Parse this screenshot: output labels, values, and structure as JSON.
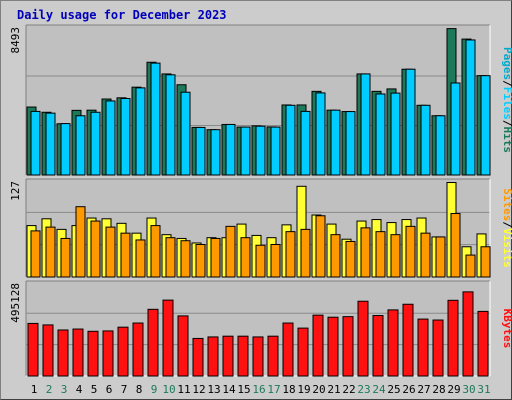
{
  "title": "Daily usage for December 2023",
  "colors": {
    "hits": "#1c7a5a",
    "files": "#00ccff",
    "pages": "#00aacc",
    "visits": "#ffff33",
    "sites": "#ff9900",
    "kbytes": "#ff1111",
    "weekday": "#000000",
    "weekend": "#1c7a5a"
  },
  "panels": {
    "top": {
      "max_label": "8493",
      "legend": [
        "Pages",
        "/",
        "Files",
        "/",
        "Hits"
      ]
    },
    "mid": {
      "max_label": "127",
      "legend": [
        "Sites",
        "/",
        "Visits"
      ]
    },
    "bot": {
      "max_label": "495128",
      "legend": [
        "KBytes"
      ]
    }
  },
  "chart_data": {
    "type": "bar",
    "title": "Daily usage for December 2023",
    "categories": [
      "1",
      "2",
      "3",
      "4",
      "5",
      "6",
      "7",
      "8",
      "9",
      "10",
      "11",
      "12",
      "13",
      "14",
      "15",
      "16",
      "17",
      "18",
      "19",
      "20",
      "21",
      "22",
      "23",
      "24",
      "25",
      "26",
      "27",
      "28",
      "29",
      "30",
      "31"
    ],
    "weekend_days": [
      "2",
      "3",
      "9",
      "10",
      "16",
      "17",
      "23",
      "24",
      "30",
      "31"
    ],
    "panels": [
      {
        "ylim": [
          0,
          8493
        ],
        "series": [
          {
            "name": "Hits",
            "values": [
              3900,
              3600,
              2940,
              3710,
              3720,
              4360,
              4430,
              5040,
              6470,
              5800,
              5180,
              2730,
              2600,
              2900,
              2750,
              2820,
              2760,
              4020,
              4020,
              4800,
              3720,
              3640,
              5800,
              4800,
              4940,
              6070,
              4000,
              3400,
              8400,
              7800,
              5700
            ]
          },
          {
            "name": "Files",
            "values": [
              3650,
              3550,
              2950,
              3400,
              3600,
              4250,
              4390,
              5000,
              6420,
              5750,
              4750,
              2730,
              2600,
              2900,
              2750,
              2800,
              2750,
              4000,
              3650,
              4710,
              3720,
              3640,
              5800,
              4650,
              4700,
              6070,
              4000,
              3400,
              5280,
              7750,
              5700
            ]
          },
          {
            "name": "Pages",
            "values": [
              3650,
              3550,
              2950,
              3400,
              3600,
              4250,
              4390,
              5000,
              6420,
              5750,
              4750,
              2730,
              2600,
              2900,
              2750,
              2800,
              2750,
              4000,
              3650,
              4710,
              3720,
              3640,
              5800,
              4650,
              4700,
              6070,
              4000,
              3400,
              5280,
              7750,
              5700
            ]
          }
        ]
      },
      {
        "ylim": [
          0,
          127
        ],
        "series": [
          {
            "name": "Visits",
            "values": [
              68,
              77,
              63,
              68,
              78,
              77,
              71,
              58,
              78,
              56,
              51,
              45,
              52,
              52,
              70,
              55,
              52,
              69,
              120,
              82,
              70,
              50,
              74,
              76,
              72,
              76,
              78,
              53,
              125,
              40,
              57
            ]
          },
          {
            "name": "Sites",
            "values": [
              61,
              66,
              51,
              93,
              74,
              66,
              58,
              49,
              68,
              52,
              48,
              43,
              51,
              67,
              52,
              42,
              43,
              60,
              63,
              81,
              56,
              47,
              65,
              60,
              56,
              67,
              58,
              53,
              84,
              29,
              40
            ]
          }
        ]
      },
      {
        "ylim": [
          0,
          495128
        ],
        "series": [
          {
            "name": "KBytes",
            "values": [
              280000,
              272000,
              245000,
              250000,
              238000,
              240000,
              260000,
              282000,
              355000,
              404000,
              320000,
              200000,
              208000,
              212000,
              212000,
              208000,
              212000,
              282000,
              255000,
              324000,
              313000,
              316000,
              398000,
              322000,
              352000,
              382000,
              303000,
              298000,
              403000,
              448000,
              344000
            ]
          }
        ]
      }
    ]
  }
}
